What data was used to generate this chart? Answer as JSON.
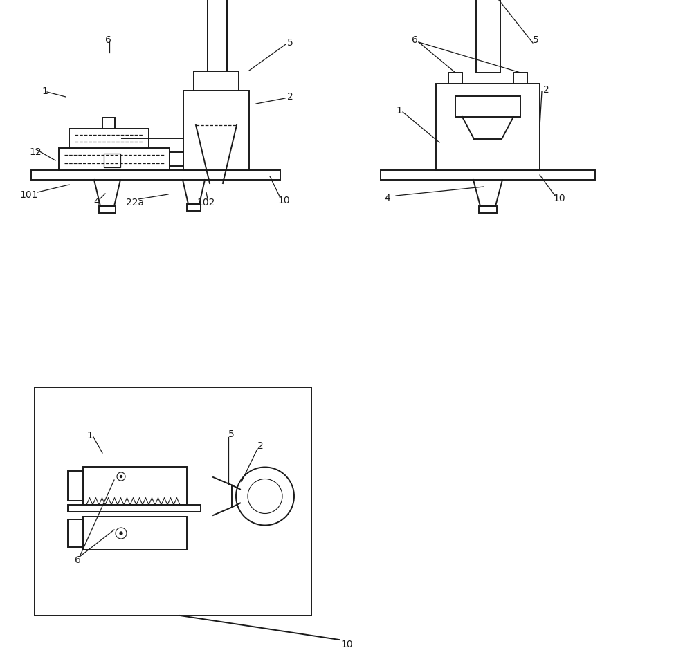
{
  "bg_color": "#ffffff",
  "line_color": "#1a1a1a",
  "lw": 1.4,
  "lw_thin": 0.8,
  "lw_dashed": 0.9,
  "fig_w": 10.0,
  "fig_h": 9.5
}
